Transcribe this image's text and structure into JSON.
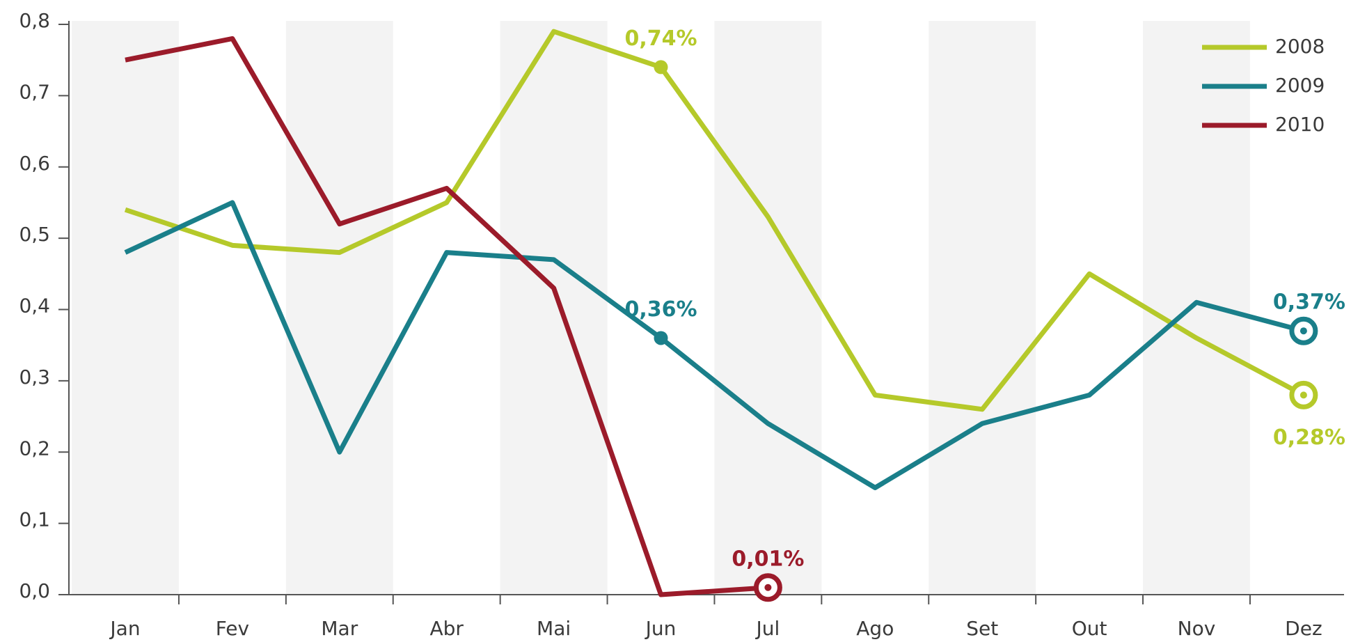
{
  "chart_data": {
    "type": "line",
    "categories": [
      "Jan",
      "Fev",
      "Mar",
      "Abr",
      "Mai",
      "Jun",
      "Jul",
      "Ago",
      "Set",
      "Out",
      "Nov",
      "Dez"
    ],
    "series": [
      {
        "name": "2008",
        "color": "#b5c92a",
        "values": [
          0.54,
          0.49,
          0.48,
          0.55,
          0.79,
          0.74,
          0.53,
          0.28,
          0.26,
          0.45,
          0.36,
          0.28
        ],
        "value_labels": [
          null,
          null,
          null,
          null,
          null,
          "0,74%",
          null,
          null,
          null,
          null,
          null,
          "0,28%"
        ]
      },
      {
        "name": "2009",
        "color": "#1a7f8a",
        "values": [
          0.48,
          0.55,
          0.2,
          0.48,
          0.47,
          0.36,
          0.24,
          0.15,
          0.24,
          0.28,
          0.41,
          0.37
        ],
        "value_labels": [
          null,
          null,
          null,
          null,
          null,
          "0,36%",
          null,
          null,
          null,
          null,
          null,
          "0,37%"
        ]
      },
      {
        "name": "2010",
        "color": "#9b1b2a",
        "values": [
          0.75,
          0.78,
          0.52,
          0.57,
          0.43,
          0.0,
          0.01,
          null,
          null,
          null,
          null,
          null
        ],
        "value_labels": [
          null,
          null,
          null,
          null,
          null,
          null,
          "0,01%",
          null,
          null,
          null,
          null,
          null
        ]
      }
    ],
    "ylim": [
      0,
      0.8
    ],
    "yticks": [
      {
        "value": 0,
        "label": "0,0"
      },
      {
        "value": 0.1,
        "label": "0,1"
      },
      {
        "value": 0.2,
        "label": "0,2"
      },
      {
        "value": 0.3,
        "label": "0,3"
      },
      {
        "value": 0.4,
        "label": "0,4"
      },
      {
        "value": 0.5,
        "label": "0,5"
      },
      {
        "value": 0.6,
        "label": "0,6"
      },
      {
        "value": 0.7,
        "label": "0,7"
      },
      {
        "value": 0.8,
        "label": "0,8"
      }
    ],
    "legend": "upper right"
  }
}
